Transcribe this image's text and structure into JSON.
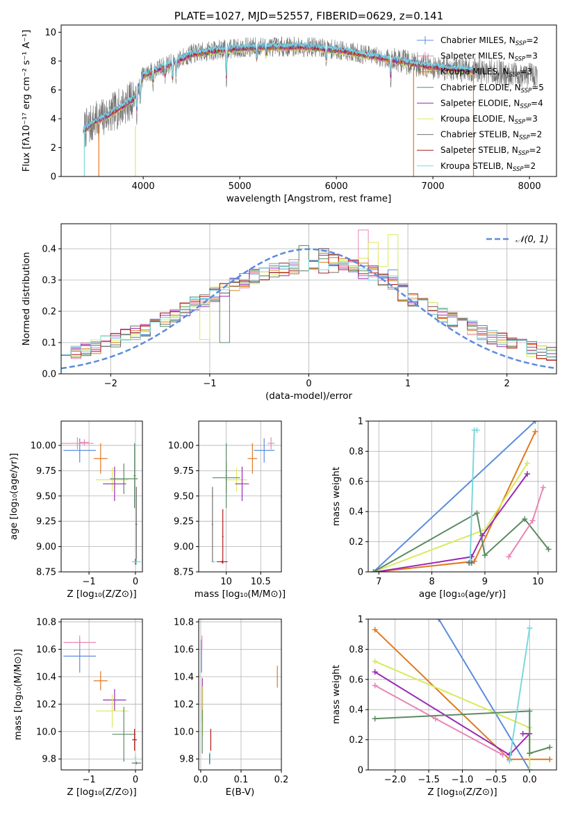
{
  "colors": {
    "c1": "#5b8bdc",
    "c2": "#e884b4",
    "c3": "#e0781e",
    "c4": "#5a8a60",
    "c5": "#9a2ab4",
    "c6": "#d8ea5a",
    "c7": "#707070",
    "c8": "#b01818",
    "c9": "#7ad8dc",
    "gaussian": "#5b8bdc"
  },
  "chart_data": [
    {
      "id": "spectrum",
      "type": "line",
      "title": "PLATE=1027, MJD=52557, FIBERID=0629, z=0.141",
      "xlabel": "wavelength [Angstrom, rest frame]",
      "ylabel": "Flux [fλ10⁻¹⁷ erg cm⁻² s⁻¹ A⁻¹]",
      "xlim": [
        3150,
        8280
      ],
      "ylim": [
        0,
        10.5
      ],
      "xticks": [
        4000,
        5000,
        6000,
        7000,
        8000
      ],
      "yticks": [
        0,
        2,
        4,
        6,
        8,
        10
      ],
      "legend_position": "upper right",
      "legend": [
        {
          "label": "Chabrier MILES, N",
          "sub": "SSP",
          "tail": "=2",
          "color": "c1"
        },
        {
          "label": "Salpeter MILES, N",
          "sub": "SSP",
          "tail": "=3",
          "color": "c2"
        },
        {
          "label": "Kroupa MILES, N",
          "sub": "SSP",
          "tail": "=3",
          "color": "c3"
        },
        {
          "label": "Chabrier ELODIE, N",
          "sub": "SSP",
          "tail": "=5",
          "color": "c4"
        },
        {
          "label": "Salpeter ELODIE, N",
          "sub": "SSP",
          "tail": "=4",
          "color": "c5"
        },
        {
          "label": "Kroupa ELODIE, N",
          "sub": "SSP",
          "tail": "=3",
          "color": "c6"
        },
        {
          "label": "Chabrier STELIB, N",
          "sub": "SSP",
          "tail": "=2",
          "color": "c7"
        },
        {
          "label": "Salpeter STELIB, N",
          "sub": "SSP",
          "tail": "=2",
          "color": "c8"
        },
        {
          "label": "Kroupa STELIB, N",
          "sub": "SSP",
          "tail": "=2",
          "color": "c9"
        }
      ],
      "continuum_anchors": [
        [
          3380,
          3.2
        ],
        [
          3500,
          3.8
        ],
        [
          3700,
          4.5
        ],
        [
          3900,
          5.4
        ],
        [
          4000,
          7.0
        ],
        [
          4200,
          7.6
        ],
        [
          4500,
          8.5
        ],
        [
          4800,
          8.8
        ],
        [
          5200,
          9.0
        ],
        [
          5700,
          9.0
        ],
        [
          6100,
          8.7
        ],
        [
          6500,
          8.2
        ],
        [
          7000,
          7.6
        ],
        [
          7500,
          7.3
        ],
        [
          8000,
          7.0
        ]
      ],
      "model_range": [
        3380,
        7420
      ],
      "data_range": [
        3390,
        8080
      ],
      "drop_wavelengths": [
        3390,
        3540,
        3920,
        6800,
        7420
      ],
      "dip_features": [
        [
          3934,
          1.6
        ],
        [
          3969,
          1.4
        ],
        [
          4101,
          0.9
        ],
        [
          4226,
          0.8
        ],
        [
          4304,
          1.3
        ],
        [
          4340,
          1.1
        ],
        [
          4861,
          2.2
        ],
        [
          5175,
          0.9
        ],
        [
          5270,
          0.6
        ],
        [
          5894,
          0.8
        ],
        [
          6563,
          1.3
        ]
      ]
    },
    {
      "id": "residuals",
      "type": "step",
      "xlabel": "(data-model)/error",
      "ylabel": "Normed distribution",
      "xlim": [
        -2.5,
        2.5
      ],
      "ylim": [
        0,
        0.48
      ],
      "xticks": [
        -2,
        -1,
        0,
        1,
        2
      ],
      "yticks": [
        0.0,
        0.1,
        0.2,
        0.3,
        0.4
      ],
      "bin_width": 0.1,
      "curve_label": "𝒩(0, 1)",
      "legend_position": "upper right",
      "highlight_bins": [
        [
          -0.55,
          0.42
        ],
        [
          0.55,
          0.46
        ],
        [
          0.85,
          0.44
        ],
        [
          0.25,
          0.42
        ],
        [
          0.65,
          0.44
        ],
        [
          -1.05,
          0.11
        ],
        [
          -0.85,
          0.1
        ],
        [
          -0.35,
          0.24
        ]
      ]
    },
    {
      "id": "age_vs_Z",
      "type": "errorbar",
      "xlabel": "Z [log₁₀(Z/Z⊙)]",
      "ylabel": "age  [log₁₀(age/yr)]",
      "xlim": [
        -1.6,
        0.15
      ],
      "ylim": [
        8.75,
        10.24
      ],
      "xticks": [
        -1,
        0
      ],
      "yticks": [
        8.75,
        9.0,
        9.25,
        9.5,
        9.75,
        10.0
      ],
      "ytick_labels": [
        "8.75",
        "9.00",
        "9.25",
        "9.50",
        "9.75",
        "10.00"
      ],
      "points": [
        {
          "c": "c1",
          "x": -1.2,
          "xerr": 0.35,
          "y": 9.95,
          "yerr": 0.12
        },
        {
          "c": "c2",
          "x": -1.25,
          "xerr": 0.35,
          "y": 10.02,
          "yerr": 0.06
        },
        {
          "c": "c2",
          "x": -1.1,
          "xerr": 0.1,
          "y": 10.03,
          "yerr": 0.03
        },
        {
          "c": "c3",
          "x": -0.75,
          "xerr": 0.15,
          "y": 9.87,
          "yerr": 0.15
        },
        {
          "c": "c6",
          "x": -0.5,
          "xerr": 0.35,
          "y": 9.66,
          "yerr": 0.12
        },
        {
          "c": "c5",
          "x": -0.45,
          "xerr": 0.25,
          "y": 9.62,
          "yerr": 0.17
        },
        {
          "c": "c4",
          "x": -0.25,
          "xerr": 0.3,
          "y": 9.67,
          "yerr": 0.15
        },
        {
          "c": "c4",
          "x": -0.02,
          "xerr": 0.02,
          "y": 9.7,
          "yerr": 0.32
        },
        {
          "c": "c7",
          "x": 0.02,
          "xerr": 0.02,
          "y": 9.22,
          "yerr": 0.37
        },
        {
          "c": "c8",
          "x": 0.0,
          "xerr": 0.05,
          "y": 8.85,
          "yerr": 0.03
        },
        {
          "c": "c9",
          "x": 0.02,
          "xerr": 0.1,
          "y": 8.85,
          "yerr": 0.03
        }
      ]
    },
    {
      "id": "age_vs_mass",
      "type": "errorbar",
      "xlabel": "mass [log₁₀(M/M⊙)]",
      "ylabel": "",
      "xlim": [
        9.6,
        10.8
      ],
      "ylim": [
        8.75,
        10.24
      ],
      "xticks": [
        10.0,
        10.5
      ],
      "yticks": [
        8.75,
        9.0,
        9.25,
        9.5,
        9.75,
        10.0
      ],
      "ytick_labels": [
        "8.75",
        "9.00",
        "9.25",
        "9.50",
        "9.75",
        "10.00"
      ],
      "points": [
        {
          "c": "c1",
          "x": 10.55,
          "xerr": 0.15,
          "y": 9.95,
          "yerr": 0.12
        },
        {
          "c": "c2",
          "x": 10.65,
          "xerr": 0.05,
          "y": 10.02,
          "yerr": 0.06
        },
        {
          "c": "c3",
          "x": 10.38,
          "xerr": 0.07,
          "y": 9.87,
          "yerr": 0.15
        },
        {
          "c": "c6",
          "x": 10.15,
          "xerr": 0.15,
          "y": 9.66,
          "yerr": 0.12
        },
        {
          "c": "c5",
          "x": 10.23,
          "xerr": 0.1,
          "y": 9.62,
          "yerr": 0.17
        },
        {
          "c": "c4",
          "x": 10.0,
          "xerr": 0.2,
          "y": 9.68,
          "yerr": 0.15
        },
        {
          "c": "c4",
          "x": 10.0,
          "xerr": 0.01,
          "y": 9.7,
          "yerr": 0.32
        },
        {
          "c": "c7",
          "x": 9.8,
          "xerr": 0.01,
          "y": 9.22,
          "yerr": 0.37
        },
        {
          "c": "c8",
          "x": 9.95,
          "xerr": 0.01,
          "y": 9.1,
          "yerr": 0.27
        },
        {
          "c": "c8",
          "x": 9.94,
          "xerr": 0.08,
          "y": 8.85,
          "yerr": 0.01
        },
        {
          "c": "c9",
          "x": 9.81,
          "xerr": 0.03,
          "y": 8.85,
          "yerr": 0.01
        }
      ]
    },
    {
      "id": "mass_weight_vs_age",
      "type": "line",
      "xlabel": "age  [log₁₀(age/yr)]",
      "ylabel": "mass weight",
      "xlim": [
        6.8,
        10.35
      ],
      "ylim": [
        0,
        1.0
      ],
      "xticks": [
        7,
        8,
        9,
        10
      ],
      "yticks": [
        0.0,
        0.2,
        0.4,
        0.6,
        0.8,
        1.0
      ],
      "series": [
        {
          "c": "c1",
          "x": [
            6.9,
            9.95
          ],
          "y": [
            0.0,
            1.0
          ]
        },
        {
          "c": "c3",
          "x": [
            6.95,
            8.8,
            9.95
          ],
          "y": [
            0.0,
            0.07,
            0.93
          ]
        },
        {
          "c": "c6",
          "x": [
            6.9,
            9.0,
            9.8
          ],
          "y": [
            0.0,
            0.28,
            0.72
          ]
        },
        {
          "c": "c5",
          "x": [
            6.95,
            8.75,
            8.95,
            9.8
          ],
          "y": [
            0.0,
            0.1,
            0.24,
            0.65
          ]
        },
        {
          "c": "c4",
          "x": [
            6.9,
            8.85,
            9.0,
            9.75,
            10.2
          ],
          "y": [
            0.0,
            0.39,
            0.11,
            0.35,
            0.15
          ]
        },
        {
          "c": "c2",
          "x": [
            9.45,
            9.9,
            10.1
          ],
          "y": [
            0.1,
            0.34,
            0.56
          ]
        },
        {
          "c": "c9",
          "x": [
            8.72,
            8.8,
            8.85
          ],
          "y": [
            0.06,
            0.94,
            0.94
          ]
        },
        {
          "c": "c7",
          "x": [
            8.7,
            8.75
          ],
          "y": [
            0.06,
            0.06
          ]
        }
      ]
    },
    {
      "id": "mass_vs_Z",
      "type": "errorbar",
      "xlabel": "Z [log₁₀(Z/Z⊙)]",
      "ylabel": "mass [log₁₀(M/M⊙)]",
      "xlim": [
        -1.6,
        0.15
      ],
      "ylim": [
        9.72,
        10.82
      ],
      "xticks": [
        -1,
        0
      ],
      "yticks": [
        9.8,
        10.0,
        10.2,
        10.4,
        10.6,
        10.8
      ],
      "ytick_labels": [
        "9.8",
        "10.0",
        "10.2",
        "10.4",
        "10.6",
        "10.8"
      ],
      "points": [
        {
          "c": "c1",
          "x": -1.2,
          "xerr": 0.35,
          "y": 10.55,
          "yerr": 0.12
        },
        {
          "c": "c2",
          "x": -1.2,
          "xerr": 0.35,
          "y": 10.65,
          "yerr": 0.05
        },
        {
          "c": "c3",
          "x": -0.75,
          "xerr": 0.15,
          "y": 10.37,
          "yerr": 0.07
        },
        {
          "c": "c5",
          "x": -0.45,
          "xerr": 0.25,
          "y": 10.23,
          "yerr": 0.08
        },
        {
          "c": "c6",
          "x": -0.5,
          "xerr": 0.35,
          "y": 10.15,
          "yerr": 0.12
        },
        {
          "c": "c4",
          "x": -0.25,
          "xerr": 0.25,
          "y": 9.98,
          "yerr": 0.2
        },
        {
          "c": "c8",
          "x": -0.02,
          "xerr": 0.05,
          "y": 9.94,
          "yerr": 0.08
        },
        {
          "c": "c9",
          "x": 0.0,
          "xerr": 0.02,
          "y": 9.81,
          "yerr": 0.03
        },
        {
          "c": "c7",
          "x": 0.02,
          "xerr": 0.1,
          "y": 9.77,
          "yerr": 0.01
        }
      ]
    },
    {
      "id": "mass_vs_ebv",
      "type": "errorbar",
      "xlabel": "E(B-V)",
      "ylabel": "",
      "xlim": [
        -0.005,
        0.2
      ],
      "ylim": [
        9.72,
        10.82
      ],
      "xticks": [
        0.0,
        0.1,
        0.2
      ],
      "xtick_labels": [
        "0.0",
        "0.1",
        "0.2"
      ],
      "yticks": [
        9.8,
        10.0,
        10.2,
        10.4,
        10.6,
        10.8
      ],
      "ytick_labels": [
        "9.8",
        "10.0",
        "10.2",
        "10.4",
        "10.6",
        "10.8"
      ],
      "points": [
        {
          "c": "c1",
          "x": 0.002,
          "xerr": 0.0,
          "y": 10.55,
          "yerr": 0.12
        },
        {
          "c": "c2",
          "x": 0.003,
          "xerr": 0.0,
          "y": 10.65,
          "yerr": 0.05
        },
        {
          "c": "c3",
          "x": 0.19,
          "xerr": 0.0,
          "y": 10.4,
          "yerr": 0.08
        },
        {
          "c": "c5",
          "x": 0.004,
          "xerr": 0.0,
          "y": 10.23,
          "yerr": 0.16
        },
        {
          "c": "c6",
          "x": 0.005,
          "xerr": 0.0,
          "y": 10.15,
          "yerr": 0.18
        },
        {
          "c": "c4",
          "x": 0.004,
          "xerr": 0.0,
          "y": 10.0,
          "yerr": 0.16
        },
        {
          "c": "c8",
          "x": 0.025,
          "xerr": 0.0,
          "y": 9.94,
          "yerr": 0.08
        },
        {
          "c": "c9",
          "x": 0.023,
          "xerr": 0.0,
          "y": 9.81,
          "yerr": 0.04
        },
        {
          "c": "c7",
          "x": 0.022,
          "xerr": 0.0,
          "y": 9.8,
          "yerr": 0.04
        }
      ]
    },
    {
      "id": "mass_weight_vs_Z",
      "type": "line",
      "xlabel": "Z [log₁₀(Z/Z⊙)]",
      "ylabel": "mass weight",
      "xlim": [
        -2.4,
        0.4
      ],
      "ylim": [
        0,
        1.0
      ],
      "xticks": [
        -2.0,
        -1.5,
        -1.0,
        -0.5,
        0.0
      ],
      "xtick_labels": [
        "−2.0",
        "−1.5",
        "−1.0",
        "−0.5",
        "0.0"
      ],
      "yticks": [
        0.0,
        0.2,
        0.4,
        0.6,
        0.8,
        1.0
      ],
      "series": [
        {
          "c": "c1",
          "x": [
            -1.35,
            0.0
          ],
          "y": [
            1.0,
            0.0
          ]
        },
        {
          "c": "c3",
          "x": [
            -2.3,
            -0.3,
            0.3
          ],
          "y": [
            0.93,
            0.07,
            0.07
          ]
        },
        {
          "c": "c6",
          "x": [
            -2.3,
            0.0,
            0.0
          ],
          "y": [
            0.72,
            0.28,
            0.0
          ]
        },
        {
          "c": "c5",
          "x": [
            -2.3,
            -0.3,
            0.0,
            -0.1
          ],
          "y": [
            0.65,
            0.1,
            0.24,
            0.24
          ]
        },
        {
          "c": "c2",
          "x": [
            -2.3,
            -1.4,
            -0.4
          ],
          "y": [
            0.56,
            0.34,
            0.1
          ]
        },
        {
          "c": "c4",
          "x": [
            -2.3,
            0.0,
            0.0,
            0.0,
            0.3
          ],
          "y": [
            0.34,
            0.39,
            0.11,
            0.11,
            0.15
          ]
        },
        {
          "c": "c9",
          "x": [
            -0.3,
            0.0,
            0.0
          ],
          "y": [
            0.06,
            0.94,
            0.94
          ]
        }
      ]
    }
  ]
}
